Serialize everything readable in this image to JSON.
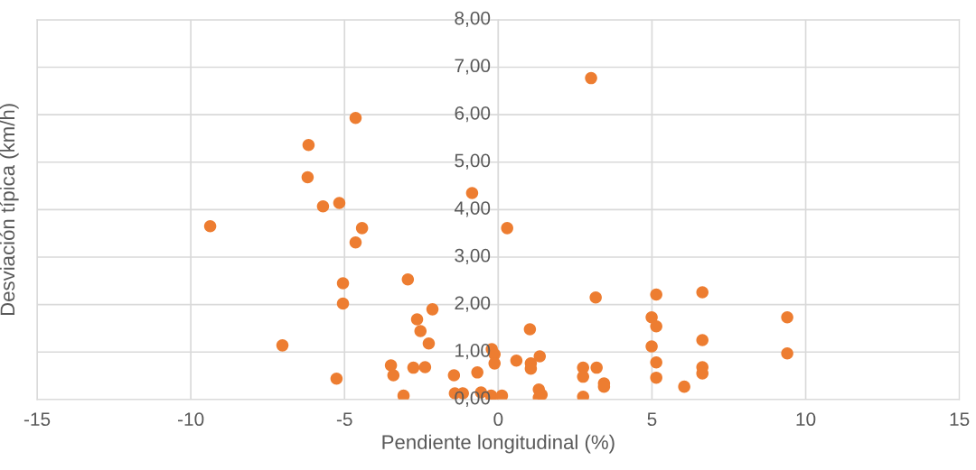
{
  "chart_data": {
    "type": "scatter",
    "xlabel": "Pendiente longitudinal (%)",
    "ylabel": "Desviación típica (km/h)",
    "xlim": [
      -15,
      15
    ],
    "xticks": [
      -15,
      -10,
      -5,
      0,
      5,
      10,
      15
    ],
    "ylim": [
      0,
      8
    ],
    "yticks": [
      {
        "value": 0,
        "label": "0,00"
      },
      {
        "value": 1,
        "label": "1,00"
      },
      {
        "value": 2,
        "label": "2,00"
      },
      {
        "value": 3,
        "label": "3,00"
      },
      {
        "value": 4,
        "label": "4,00"
      },
      {
        "value": 5,
        "label": "5,00"
      },
      {
        "value": 6,
        "label": "6,00"
      },
      {
        "value": 7,
        "label": "7,00"
      },
      {
        "value": 8,
        "label": "8,00"
      }
    ],
    "grid": true,
    "marker": "circle",
    "series": [
      {
        "color": "#ed7d31",
        "x": [
          -9.37,
          -6.17,
          -6.2,
          -5.7,
          -5.17,
          -4.64,
          -4.43,
          -4.64,
          -5.05,
          -5.05,
          -7.02,
          -5.26,
          -2.94,
          -2.64,
          -2.53,
          -2.14,
          -2.26,
          -3.49,
          -3.41,
          -3.08,
          -2.76,
          -2.38,
          -1.44,
          -0.68,
          -0.85,
          0.29,
          -1.41,
          -1.15,
          -0.56,
          -0.23,
          -0.21,
          0.12,
          -0.21,
          -0.12,
          -0.12,
          0.59,
          1.03,
          1.06,
          1.06,
          1.35,
          1.32,
          1.41,
          1.32,
          3.02,
          3.17,
          2.76,
          2.76,
          3.2,
          3.44,
          3.44,
          2.76,
          5.14,
          4.99,
          5.14,
          4.99,
          5.14,
          5.14,
          6.05,
          6.64,
          6.64,
          6.64,
          6.64,
          9.4,
          9.4
        ],
        "values": [
          3.65,
          5.36,
          4.68,
          4.07,
          4.14,
          5.93,
          3.61,
          3.31,
          2.45,
          2.02,
          1.14,
          0.44,
          2.53,
          1.69,
          1.44,
          1.9,
          1.18,
          0.72,
          0.51,
          0.08,
          0.67,
          0.68,
          0.51,
          0.57,
          4.35,
          3.61,
          0.13,
          0.13,
          0.15,
          0.08,
          0.04,
          0.08,
          1.06,
          0.95,
          0.76,
          0.82,
          1.48,
          0.76,
          0.65,
          0.91,
          0.21,
          0.1,
          0.04,
          6.77,
          2.15,
          0.67,
          0.48,
          0.67,
          0.34,
          0.27,
          0.06,
          2.21,
          1.73,
          1.54,
          1.12,
          0.78,
          0.46,
          0.27,
          2.26,
          1.25,
          0.68,
          0.55,
          1.73,
          0.97
        ]
      }
    ]
  }
}
